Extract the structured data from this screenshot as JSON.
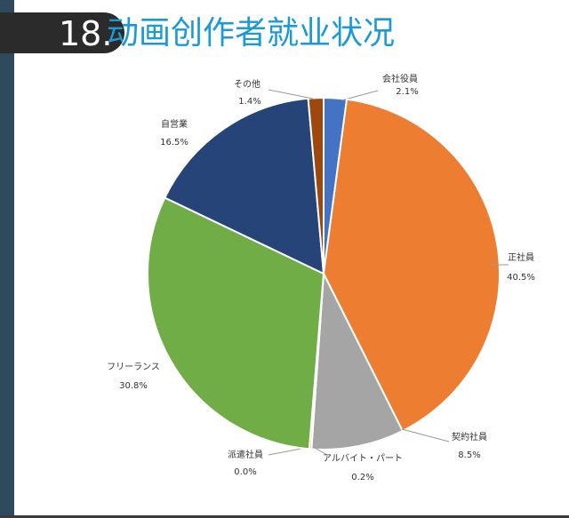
{
  "header": {
    "number": "18.",
    "title": "动画创作者就业状况"
  },
  "chart_data": {
    "type": "pie",
    "start": "top",
    "direction": "clockwise",
    "slices": [
      {
        "label": "会社役員",
        "value": 2.1,
        "display": "2.1%",
        "color": "#4472c4"
      },
      {
        "label": "正社員",
        "value": 40.5,
        "display": "40.5%",
        "color": "#ed7d31"
      },
      {
        "label": "契約社員",
        "value": 8.5,
        "display": "8.5%",
        "color": "#a5a5a5"
      },
      {
        "label": "アルバイト・パート",
        "value": 0.2,
        "display": "0.2%",
        "color": "#ffc000"
      },
      {
        "label": "派遣社員",
        "value": 0.0,
        "display": "0.0%",
        "color": "#5b9bd5"
      },
      {
        "label": "フリーランス",
        "value": 30.8,
        "display": "30.8%",
        "color": "#70ad47"
      },
      {
        "label": "自営業",
        "value": 16.5,
        "display": "16.5%",
        "color": "#264478"
      },
      {
        "label": "その他",
        "value": 1.4,
        "display": "1.4%",
        "color": "#9e480e"
      }
    ]
  }
}
